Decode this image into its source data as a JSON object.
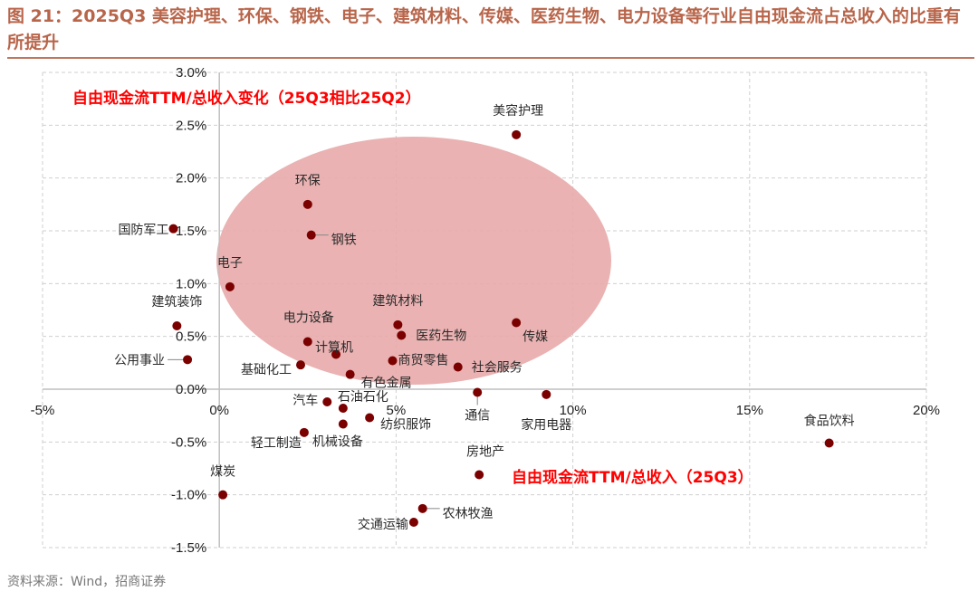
{
  "title": "图 21：2025Q3 美容护理、环保、钢铁、电子、建筑材料、传媒、医药生物、电力设备等行业自由现金流占总收入的比重有所提升",
  "source": "资料来源：Wind，招商证券",
  "chart_data": {
    "type": "scatter",
    "xlabel": "自由现金流TTM/总收入（25Q3）",
    "ylabel": "自由现金流TTM/总收入变化（25Q3相比25Q2）",
    "xlim": [
      -5,
      20
    ],
    "ylim": [
      -1.5,
      3.0
    ],
    "x_ticks": [
      "-5%",
      "0%",
      "5%",
      "10%",
      "15%",
      "20%"
    ],
    "y_ticks": [
      "3.0%",
      "2.5%",
      "2.0%",
      "1.5%",
      "1.0%",
      "0.5%",
      "0.0%",
      "-0.5%",
      "-1.0%",
      "-1.5%"
    ],
    "grid": true,
    "point_color": "#7b0000",
    "highlight_color": "#e8aaaa",
    "points": [
      {
        "name": "美容护理",
        "x": 8.4,
        "y": 2.41
      },
      {
        "name": "环保",
        "x": 2.5,
        "y": 1.75
      },
      {
        "name": "钢铁",
        "x": 2.6,
        "y": 1.46
      },
      {
        "name": "国防军工",
        "x": -1.3,
        "y": 1.52
      },
      {
        "name": "电子",
        "x": 0.3,
        "y": 0.97
      },
      {
        "name": "建筑装饰",
        "x": -1.2,
        "y": 0.6
      },
      {
        "name": "公用事业",
        "x": -0.9,
        "y": 0.28
      },
      {
        "name": "电力设备",
        "x": 2.5,
        "y": 0.45
      },
      {
        "name": "计算机",
        "x": 3.3,
        "y": 0.33
      },
      {
        "name": "基础化工",
        "x": 2.3,
        "y": 0.23
      },
      {
        "name": "有色金属",
        "x": 3.7,
        "y": 0.14
      },
      {
        "name": "建筑材料",
        "x": 5.05,
        "y": 0.61
      },
      {
        "name": "医药生物",
        "x": 5.15,
        "y": 0.51
      },
      {
        "name": "商贸零售",
        "x": 4.9,
        "y": 0.27
      },
      {
        "name": "社会服务",
        "x": 6.75,
        "y": 0.21
      },
      {
        "name": "传媒",
        "x": 8.4,
        "y": 0.63
      },
      {
        "name": "通信",
        "x": 7.3,
        "y": -0.03
      },
      {
        "name": "家用电器",
        "x": 9.25,
        "y": -0.05
      },
      {
        "name": "汽车",
        "x": 3.05,
        "y": -0.12
      },
      {
        "name": "石油石化",
        "x": 3.5,
        "y": -0.18
      },
      {
        "name": "纺织服饰",
        "x": 4.25,
        "y": -0.27
      },
      {
        "name": "机械设备",
        "x": 3.5,
        "y": -0.33
      },
      {
        "name": "轻工制造",
        "x": 2.4,
        "y": -0.41
      },
      {
        "name": "食品饮料",
        "x": 17.25,
        "y": -0.51
      },
      {
        "name": "房地产",
        "x": 7.35,
        "y": -0.81
      },
      {
        "name": "煤炭",
        "x": 0.1,
        "y": -1.0
      },
      {
        "name": "农林牧渔",
        "x": 5.75,
        "y": -1.13
      },
      {
        "name": "交通运输",
        "x": 5.5,
        "y": -1.26
      }
    ]
  }
}
